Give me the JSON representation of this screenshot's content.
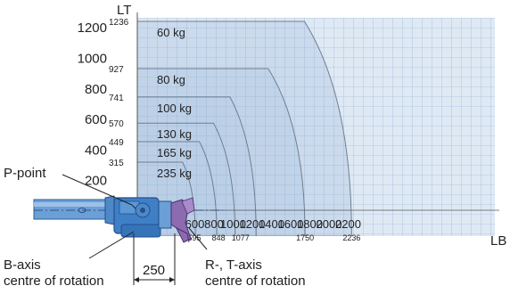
{
  "diagram": {
    "y_axis_label": "LT",
    "x_axis_label": "LB",
    "y_ticks": [
      {
        "value": 1200,
        "label": "1200"
      },
      {
        "value": 1000,
        "label": "1000"
      },
      {
        "value": 800,
        "label": "800"
      },
      {
        "value": 600,
        "label": "600"
      },
      {
        "value": 400,
        "label": "400"
      },
      {
        "value": 200,
        "label": "200"
      }
    ],
    "x_ticks": [
      {
        "value": 600,
        "label": "600"
      },
      {
        "value": 800,
        "label": "800"
      },
      {
        "value": 1000,
        "label": "1000"
      },
      {
        "value": 1200,
        "label": "1200"
      },
      {
        "value": 1400,
        "label": "1400"
      },
      {
        "value": 1600,
        "label": "1600"
      },
      {
        "value": 1800,
        "label": "1800"
      },
      {
        "value": 2000,
        "label": "2000"
      },
      {
        "value": 2200,
        "label": "2200"
      }
    ],
    "load_zones": [
      {
        "load": "60 kg",
        "lt": 1236,
        "lt_label": "1236",
        "lb": 2236,
        "lb_label": "2236"
      },
      {
        "load": "80 kg",
        "lt": 927,
        "lt_label": "927",
        "lb": 1750,
        "lb_label": "1750"
      },
      {
        "load": "100 kg",
        "lt": 741,
        "lt_label": "741",
        "lb": 1077,
        "lb_label": "1077"
      },
      {
        "load": "130 kg",
        "lt": 570,
        "lt_label": "570",
        "lb": 848,
        "lb_label": "848"
      },
      {
        "load": "165 kg",
        "lt": 449,
        "lt_label": "449",
        "lb": 595,
        "lb_label": "595"
      },
      {
        "load": "235 kg",
        "lt": 315,
        "lt_label": "315",
        "lb": null,
        "lb_label": ""
      }
    ],
    "annotations": {
      "p_point": "P-point",
      "b_axis_line1": "B-axis",
      "b_axis_line2": "centre of rotation",
      "rt_axis_line1": "R-, T-axis",
      "rt_axis_line2": "centre of rotation",
      "offset": "250"
    },
    "colors": {
      "fill_light": "#dfe9f4",
      "fill_zone": "#b9cde6",
      "grid": "#8aaed2",
      "outline": "#6f7f8f",
      "wrist": "#3f7fc6",
      "wrist_dark": "#24508c",
      "arm": "#6b9fd6",
      "gripper": "#7a5a9a"
    }
  }
}
